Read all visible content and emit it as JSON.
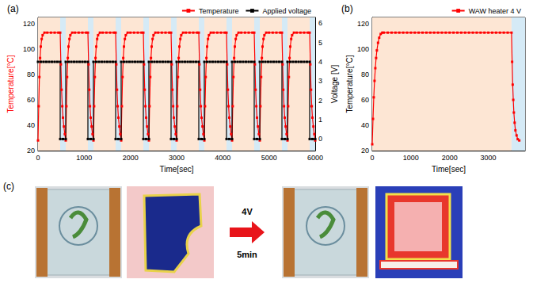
{
  "chart_data": [
    {
      "type": "line",
      "title": "(a)",
      "x_label": "Time[sec]",
      "y_label": "Temperature[°C]",
      "y2_label": "Voltage [V]",
      "xlim": [
        0,
        6000
      ],
      "xticks": [
        0,
        1000,
        2000,
        3000,
        4000,
        5000,
        6000
      ],
      "ylim": [
        20,
        125
      ],
      "yticks": [
        20,
        40,
        60,
        80,
        100,
        120
      ],
      "y2lim": [
        -0.6,
        6.3
      ],
      "y2ticks": [
        0,
        1,
        2,
        3,
        4,
        5,
        6
      ],
      "grid": false,
      "legend": "upper right",
      "bands": [
        {
          "from": 0,
          "to": 480,
          "color": "#fde6d4"
        },
        {
          "from": 480,
          "to": 600,
          "color": "#d5eaf6"
        },
        {
          "from": 600,
          "to": 1080,
          "color": "#fde6d4"
        },
        {
          "from": 1080,
          "to": 1200,
          "color": "#d5eaf6"
        },
        {
          "from": 1200,
          "to": 1680,
          "color": "#fde6d4"
        },
        {
          "from": 1680,
          "to": 1800,
          "color": "#d5eaf6"
        },
        {
          "from": 1800,
          "to": 2280,
          "color": "#fde6d4"
        },
        {
          "from": 2280,
          "to": 2400,
          "color": "#d5eaf6"
        },
        {
          "from": 2400,
          "to": 2880,
          "color": "#fde6d4"
        },
        {
          "from": 2880,
          "to": 3000,
          "color": "#d5eaf6"
        },
        {
          "from": 3000,
          "to": 3480,
          "color": "#fde6d4"
        },
        {
          "from": 3480,
          "to": 3600,
          "color": "#d5eaf6"
        },
        {
          "from": 3600,
          "to": 4080,
          "color": "#fde6d4"
        },
        {
          "from": 4080,
          "to": 4200,
          "color": "#d5eaf6"
        },
        {
          "from": 4200,
          "to": 4680,
          "color": "#fde6d4"
        },
        {
          "from": 4680,
          "to": 4800,
          "color": "#d5eaf6"
        },
        {
          "from": 4800,
          "to": 5280,
          "color": "#fde6d4"
        },
        {
          "from": 5280,
          "to": 5400,
          "color": "#d5eaf6"
        },
        {
          "from": 5400,
          "to": 5880,
          "color": "#fde6d4"
        },
        {
          "from": 5880,
          "to": 6000,
          "color": "#d5eaf6"
        }
      ],
      "series": [
        {
          "name": "Temperature",
          "color": "#ff0000",
          "marker": "square",
          "line_style": "solid",
          "x": [
            0,
            15,
            30,
            45,
            60,
            80,
            100,
            140,
            200,
            280,
            360,
            440,
            480,
            495,
            510,
            525,
            540,
            560,
            580,
            600,
            615,
            630,
            645,
            660,
            680,
            700,
            740,
            800,
            880,
            960,
            1040,
            1080,
            1095,
            1110,
            1125,
            1140,
            1160,
            1180,
            1200,
            1215,
            1230,
            1245,
            1260,
            1280,
            1300,
            1340,
            1400,
            1480,
            1560,
            1640,
            1680,
            1695,
            1710,
            1725,
            1740,
            1760,
            1780,
            1800,
            1815,
            1830,
            1845,
            1860,
            1880,
            1900,
            1940,
            2000,
            2080,
            2160,
            2240,
            2280,
            2295,
            2310,
            2325,
            2340,
            2360,
            2380,
            2400,
            2415,
            2430,
            2445,
            2460,
            2480,
            2500,
            2540,
            2600,
            2680,
            2760,
            2840,
            2880,
            2895,
            2910,
            2925,
            2940,
            2960,
            2980,
            3000,
            3015,
            3030,
            3045,
            3060,
            3080,
            3100,
            3140,
            3200,
            3280,
            3360,
            3440,
            3480,
            3495,
            3510,
            3525,
            3540,
            3560,
            3580,
            3600,
            3615,
            3630,
            3645,
            3660,
            3680,
            3700,
            3740,
            3800,
            3880,
            3960,
            4040,
            4080,
            4095,
            4110,
            4125,
            4140,
            4160,
            4180,
            4200,
            4215,
            4230,
            4245,
            4260,
            4280,
            4300,
            4340,
            4400,
            4480,
            4560,
            4640,
            4680,
            4695,
            4710,
            4725,
            4740,
            4760,
            4780,
            4800,
            4815,
            4830,
            4845,
            4860,
            4880,
            4900,
            4940,
            5000,
            5080,
            5160,
            5240,
            5280,
            5295,
            5310,
            5325,
            5340,
            5360,
            5380,
            5400,
            5415,
            5430,
            5445,
            5460,
            5480,
            5500,
            5540,
            5600,
            5680,
            5760,
            5840,
            5880,
            5895,
            5910,
            5925,
            5940,
            5960,
            5980,
            6000
          ],
          "values": [
            28,
            55,
            78,
            93,
            102,
            108,
            111,
            113,
            113,
            113,
            113,
            113,
            113,
            88,
            68,
            55,
            46,
            39,
            33,
            28,
            55,
            78,
            93,
            102,
            108,
            111,
            113,
            113,
            113,
            113,
            113,
            113,
            88,
            68,
            55,
            46,
            39,
            33,
            28,
            55,
            78,
            93,
            102,
            108,
            111,
            113,
            113,
            113,
            113,
            113,
            113,
            88,
            68,
            55,
            46,
            39,
            33,
            28,
            55,
            78,
            93,
            102,
            108,
            111,
            113,
            113,
            113,
            113,
            113,
            113,
            88,
            68,
            55,
            46,
            39,
            33,
            28,
            55,
            78,
            93,
            102,
            108,
            111,
            113,
            113,
            113,
            113,
            113,
            113,
            88,
            68,
            55,
            46,
            39,
            33,
            28,
            55,
            78,
            93,
            102,
            108,
            111,
            113,
            113,
            113,
            113,
            113,
            113,
            88,
            68,
            55,
            46,
            39,
            33,
            28,
            55,
            78,
            93,
            102,
            108,
            111,
            113,
            113,
            113,
            113,
            113,
            113,
            88,
            68,
            55,
            46,
            39,
            33,
            28,
            55,
            78,
            93,
            102,
            108,
            111,
            113,
            113,
            113,
            113,
            113,
            113,
            88,
            68,
            55,
            46,
            39,
            33,
            28,
            55,
            78,
            93,
            102,
            108,
            111,
            113,
            113,
            113,
            113,
            113,
            113,
            88,
            68,
            55,
            46,
            39,
            33,
            28,
            55,
            78,
            93,
            102,
            108,
            111,
            113,
            113,
            113,
            113,
            113,
            113,
            88,
            68,
            55,
            46,
            39,
            33,
            28
          ]
        },
        {
          "name": "Applied voltage",
          "color": "#000000",
          "marker": "square",
          "line_style": "solid",
          "axis": "y2",
          "x": [
            0,
            60,
            120,
            180,
            240,
            300,
            360,
            420,
            480,
            480,
            540,
            600,
            600,
            660,
            720,
            780,
            840,
            900,
            960,
            1020,
            1080,
            1080,
            1140,
            1200,
            1200,
            1260,
            1320,
            1380,
            1440,
            1500,
            1560,
            1620,
            1680,
            1680,
            1740,
            1800,
            1800,
            1860,
            1920,
            1980,
            2040,
            2100,
            2160,
            2220,
            2280,
            2280,
            2340,
            2400,
            2400,
            2460,
            2520,
            2580,
            2640,
            2700,
            2760,
            2820,
            2880,
            2880,
            2940,
            3000,
            3000,
            3060,
            3120,
            3180,
            3240,
            3300,
            3360,
            3420,
            3480,
            3480,
            3540,
            3600,
            3600,
            3660,
            3720,
            3780,
            3840,
            3900,
            3960,
            4020,
            4080,
            4080,
            4140,
            4200,
            4200,
            4260,
            4320,
            4380,
            4440,
            4500,
            4560,
            4620,
            4680,
            4680,
            4740,
            4800,
            4800,
            4860,
            4920,
            4980,
            5040,
            5100,
            5160,
            5220,
            5280,
            5280,
            5340,
            5400,
            5400,
            5460,
            5520,
            5580,
            5640,
            5700,
            5760,
            5820,
            5880,
            5880,
            5940,
            6000
          ],
          "values": [
            4,
            4,
            4,
            4,
            4,
            4,
            4,
            4,
            4,
            0,
            0,
            0,
            4,
            4,
            4,
            4,
            4,
            4,
            4,
            4,
            4,
            0,
            0,
            0,
            4,
            4,
            4,
            4,
            4,
            4,
            4,
            4,
            4,
            0,
            0,
            0,
            4,
            4,
            4,
            4,
            4,
            4,
            4,
            4,
            4,
            0,
            0,
            0,
            4,
            4,
            4,
            4,
            4,
            4,
            4,
            4,
            4,
            0,
            0,
            0,
            4,
            4,
            4,
            4,
            4,
            4,
            4,
            4,
            4,
            0,
            0,
            0,
            4,
            4,
            4,
            4,
            4,
            4,
            4,
            4,
            4,
            0,
            0,
            0,
            4,
            4,
            4,
            4,
            4,
            4,
            4,
            4,
            4,
            0,
            0,
            0,
            4,
            4,
            4,
            4,
            4,
            4,
            4,
            4,
            4,
            0,
            0,
            0,
            4,
            4,
            4,
            4,
            4,
            4,
            4,
            4,
            4,
            0,
            0,
            0
          ]
        }
      ]
    },
    {
      "type": "line",
      "title": "(b)",
      "x_label": "Time[sec]",
      "y_label": "Temperature[°C]",
      "xlim": [
        0,
        3950
      ],
      "xticks": [
        0,
        1000,
        2000,
        3000
      ],
      "ylim": [
        20,
        125
      ],
      "yticks": [
        20,
        40,
        60,
        80,
        100,
        120
      ],
      "grid": false,
      "legend": "upper right",
      "bands": [
        {
          "from": 0,
          "to": 3600,
          "color": "#fde6d4"
        },
        {
          "from": 3600,
          "to": 3950,
          "color": "#d5eaf6"
        }
      ],
      "series": [
        {
          "name": "WAW heater 4 V",
          "color": "#ff0000",
          "marker": "square",
          "line_style": "solid",
          "x": [
            0,
            20,
            40,
            60,
            80,
            100,
            120,
            150,
            180,
            220,
            260,
            300,
            400,
            500,
            600,
            700,
            800,
            900,
            1000,
            1100,
            1200,
            1300,
            1400,
            1500,
            1600,
            1700,
            1800,
            1900,
            2000,
            2100,
            2200,
            2300,
            2400,
            2500,
            2600,
            2700,
            2800,
            2900,
            3000,
            3100,
            3200,
            3300,
            3400,
            3500,
            3600,
            3615,
            3630,
            3645,
            3660,
            3680,
            3700,
            3730,
            3760,
            3800
          ],
          "values": [
            25,
            45,
            62,
            75,
            85,
            93,
            99,
            105,
            109,
            112,
            113,
            113,
            113,
            113,
            113,
            113,
            113,
            113,
            113,
            113,
            113,
            113,
            113,
            113,
            113,
            113,
            113,
            113,
            113,
            113,
            113,
            113,
            113,
            113,
            113,
            113,
            113,
            113,
            113,
            113,
            113,
            113,
            113,
            113,
            113,
            90,
            72,
            60,
            50,
            42,
            36,
            32,
            29,
            28
          ]
        }
      ]
    }
  ],
  "panel_c": {
    "label": "(c)",
    "arrow_labels": [
      "4V",
      "5min"
    ]
  }
}
